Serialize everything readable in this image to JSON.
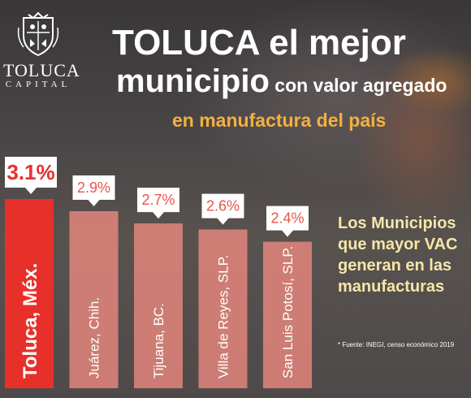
{
  "brand": {
    "name": "TOLUCA",
    "sub": "CAPITAL"
  },
  "headline": {
    "line1": "TOLUCA el mejor",
    "line2_big": "municipio",
    "line2_small": " con valor agregado",
    "line3": "en manufactura del país"
  },
  "side_text": [
    "Los Municipios",
    "que mayor VAC",
    "generan en las",
    "manufacturas"
  ],
  "source": "* Fuente: INEGI, censo económico 2019",
  "colors": {
    "highlight_bar": "#e8302b",
    "muted_bar": "#f08a80",
    "headline_accent": "#f3b13d"
  },
  "chart_data": {
    "type": "bar",
    "categories": [
      "Toluca, Méx.",
      "Juárez, Chih.",
      "Tijuana, BC.",
      "Villa de Reyes, SLP.",
      "San Luis Potosí, SLP."
    ],
    "values": [
      3.1,
      2.9,
      2.7,
      2.6,
      2.4
    ],
    "value_labels": [
      "3.1%",
      "2.9%",
      "2.7%",
      "2.6%",
      "2.4%"
    ],
    "highlight_index": 0,
    "unit": "%"
  }
}
